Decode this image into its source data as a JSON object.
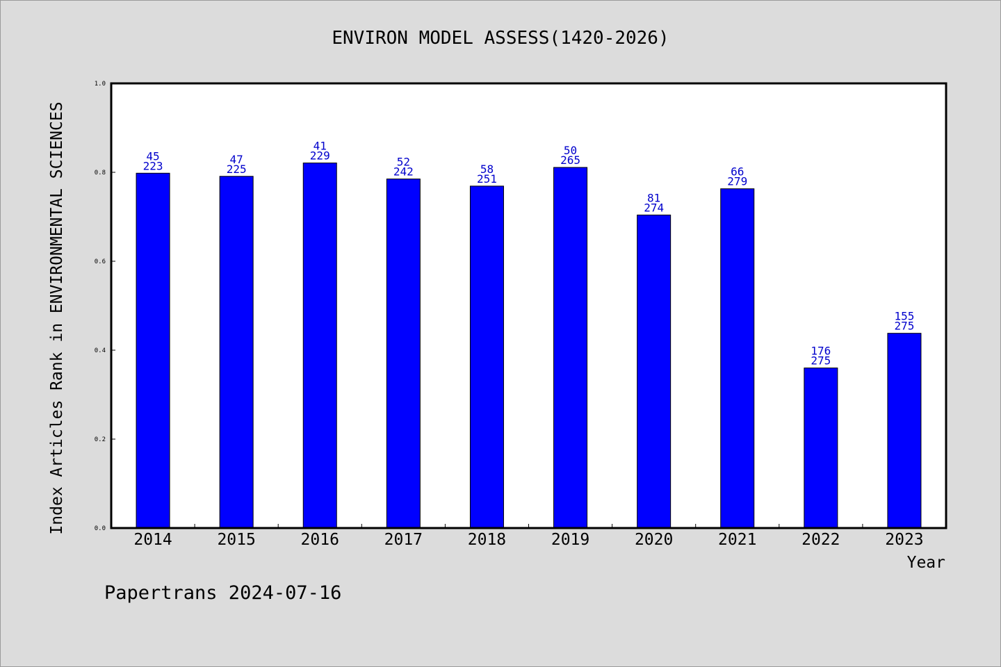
{
  "chart_data": {
    "type": "bar",
    "title": "ENVIRON MODEL ASSESS(1420-2026)",
    "xlabel": "Year",
    "ylabel": "Index Articles Rank in ENVIRONMENTAL SCIENCES",
    "categories": [
      "2014",
      "2015",
      "2016",
      "2017",
      "2018",
      "2019",
      "2020",
      "2021",
      "2022",
      "2023"
    ],
    "values": [
      0.798,
      0.791,
      0.821,
      0.785,
      0.769,
      0.811,
      0.704,
      0.763,
      0.36,
      0.438
    ],
    "rank_labels": [
      "45",
      "47",
      "41",
      "52",
      "58",
      "50",
      "81",
      "66",
      "176",
      "155"
    ],
    "total_labels": [
      "223",
      "225",
      "229",
      "242",
      "251",
      "265",
      "274",
      "279",
      "275",
      "275"
    ],
    "ylim": [
      0,
      1.0
    ],
    "yticks": [
      "0.0",
      "0.2",
      "0.4",
      "0.6",
      "0.8",
      "1.0"
    ],
    "grid": false,
    "bar_color": "#0000ff",
    "label_color": "#0000cc"
  },
  "footer": "Papertrans 2024-07-16"
}
